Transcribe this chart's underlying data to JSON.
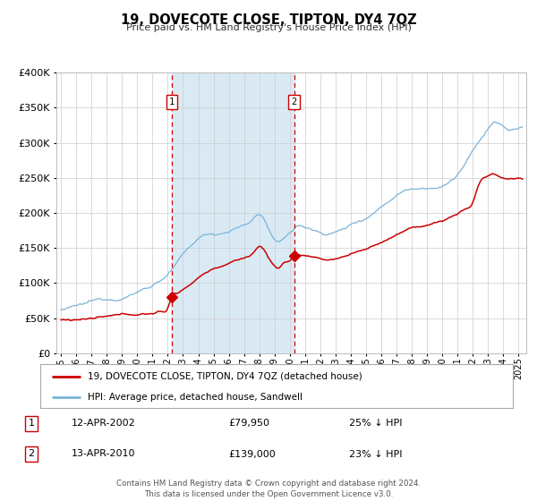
{
  "title": "19, DOVECOTE CLOSE, TIPTON, DY4 7QZ",
  "subtitle": "Price paid vs. HM Land Registry's House Price Index (HPI)",
  "legend_line1": "19, DOVECOTE CLOSE, TIPTON, DY4 7QZ (detached house)",
  "legend_line2": "HPI: Average price, detached house, Sandwell",
  "sale1_date": "12-APR-2002",
  "sale1_price": "£79,950",
  "sale1_pct": "25% ↓ HPI",
  "sale2_date": "13-APR-2010",
  "sale2_price": "£139,000",
  "sale2_pct": "23% ↓ HPI",
  "footer1": "Contains HM Land Registry data © Crown copyright and database right 2024.",
  "footer2": "This data is licensed under the Open Government Licence v3.0.",
  "hpi_color": "#7ab4d8",
  "price_color": "#cc0000",
  "shade_color": "#daeaf5",
  "dashed_color": "#cc0000",
  "ylim": [
    0,
    400000
  ],
  "yticks": [
    0,
    50000,
    100000,
    150000,
    200000,
    250000,
    300000,
    350000,
    400000
  ],
  "sale1_x": 2002.28,
  "sale1_y": 79950,
  "sale2_x": 2010.28,
  "sale2_y": 139000,
  "xmin": 1994.7,
  "xmax": 2025.5
}
